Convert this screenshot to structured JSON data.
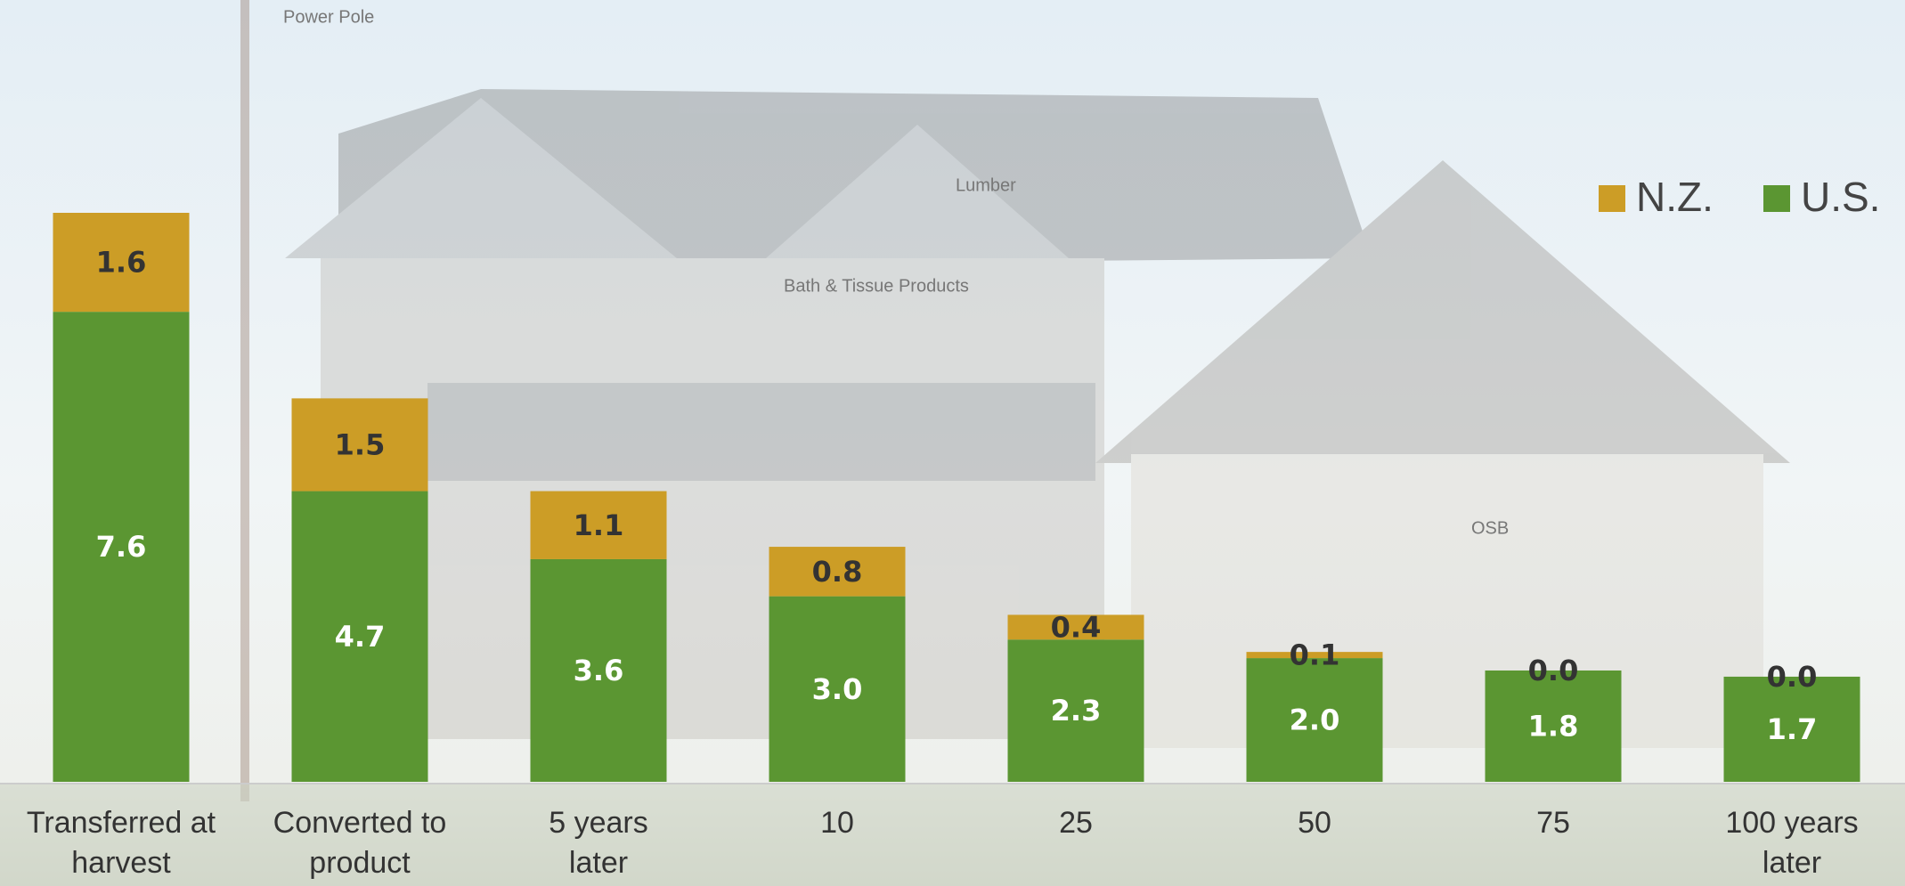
{
  "chart_data": {
    "type": "stacked_bar",
    "categories": [
      "Transferred at\nharvest",
      "Converted to\nproduct",
      "5 years\nlater",
      "10",
      "25",
      "50",
      "75",
      "100 years\nlater"
    ],
    "series": [
      {
        "name": "U.S.",
        "color": "#5b9632",
        "values": [
          7.6,
          4.7,
          3.6,
          3.0,
          2.3,
          2.0,
          1.8,
          1.7
        ],
        "value_labels": [
          "7.6",
          "4.7",
          "3.6",
          "3.0",
          "2.3",
          "2.0",
          "1.8",
          "1.7"
        ]
      },
      {
        "name": "N.Z.",
        "color": "#cc9d26",
        "values": [
          1.6,
          1.5,
          1.1,
          0.8,
          0.4,
          0.1,
          0.0,
          0.0
        ],
        "value_labels": [
          "1.6",
          "1.5",
          "1.1",
          "0.8",
          "0.4",
          "0.1",
          "0.0",
          "0.0"
        ]
      }
    ],
    "legend": "top-right",
    "illustration_labels": [
      "Power Pole",
      "Lumber",
      "Bath & Tissue Products",
      "OSB"
    ]
  }
}
